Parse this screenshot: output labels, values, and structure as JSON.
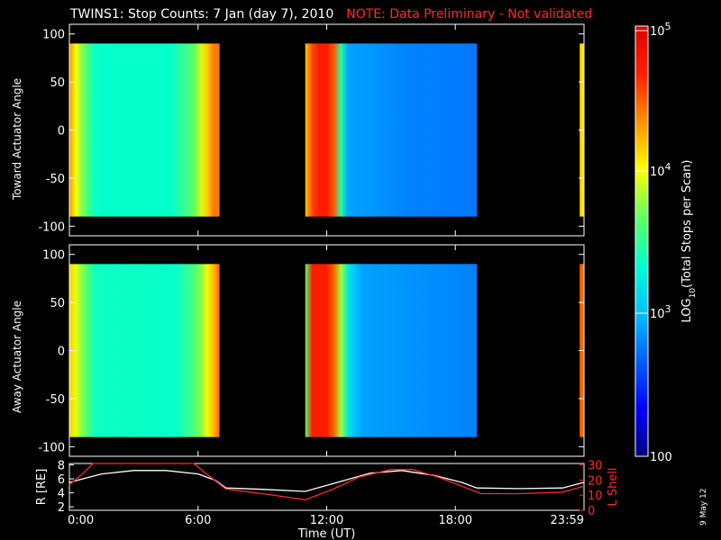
{
  "title": {
    "main": "TWINS1: Stop Counts:  7 Jan (day    7), 2010",
    "note": "NOTE: Data Preliminary - Not validated",
    "note_color": "#ff2a2a"
  },
  "datestamp": "9 May 12",
  "chart_data": [
    {
      "type": "heatmap",
      "id": "toward",
      "ylabel": "Toward Actuator Angle",
      "ylim": [
        -110,
        110
      ],
      "yticks": [
        "100",
        "50",
        "0",
        "-50",
        "-100"
      ],
      "ytick_values": [
        100,
        50,
        0,
        -50,
        -100
      ],
      "x_domain_hours": [
        0,
        24
      ],
      "data_segments_hours": [
        [
          0.0,
          7.0
        ],
        [
          11.0,
          19.0
        ],
        [
          23.8,
          24.0
        ]
      ],
      "angle_range": [
        -90,
        90
      ],
      "background": "#000000",
      "series": [
        {
          "name": "seg1",
          "profile": [
            [
              0.0,
              0.78
            ],
            [
              0.4,
              0.62
            ],
            [
              1.2,
              0.45
            ],
            [
              4.8,
              0.45
            ],
            [
              5.8,
              0.55
            ],
            [
              6.3,
              0.68
            ],
            [
              6.9,
              0.85
            ],
            [
              7.0,
              0.8
            ]
          ]
        },
        {
          "name": "seg2",
          "profile": [
            [
              11.0,
              0.72
            ],
            [
              11.4,
              0.88
            ],
            [
              11.9,
              0.92
            ],
            [
              12.4,
              0.82
            ],
            [
              12.6,
              0.52
            ],
            [
              13.0,
              0.3
            ],
            [
              16.0,
              0.26
            ],
            [
              19.0,
              0.25
            ]
          ]
        },
        {
          "name": "seg3",
          "profile": [
            [
              23.8,
              0.7
            ],
            [
              24.0,
              0.7
            ]
          ]
        }
      ]
    },
    {
      "type": "heatmap",
      "id": "away",
      "ylabel": "Away Actuator Angle",
      "ylim": [
        -110,
        110
      ],
      "yticks": [
        "100",
        "50",
        "0",
        "-50",
        "-100"
      ],
      "ytick_values": [
        100,
        50,
        0,
        -50,
        -100
      ],
      "x_domain_hours": [
        0,
        24
      ],
      "data_segments_hours": [
        [
          0.0,
          7.0
        ],
        [
          11.0,
          19.0
        ],
        [
          23.8,
          24.0
        ]
      ],
      "angle_range": [
        -90,
        90
      ],
      "background": "#000000",
      "series": [
        {
          "name": "seg1",
          "profile": [
            [
              0.0,
              0.72
            ],
            [
              0.5,
              0.6
            ],
            [
              1.2,
              0.46
            ],
            [
              5.0,
              0.45
            ],
            [
              6.0,
              0.55
            ],
            [
              6.6,
              0.7
            ],
            [
              7.0,
              0.82
            ]
          ]
        },
        {
          "name": "seg2",
          "profile": [
            [
              11.0,
              0.55
            ],
            [
              11.2,
              0.9
            ],
            [
              12.0,
              0.9
            ],
            [
              12.5,
              0.78
            ],
            [
              12.8,
              0.45
            ],
            [
              13.5,
              0.3
            ],
            [
              19.0,
              0.26
            ]
          ]
        },
        {
          "name": "seg3",
          "profile": [
            [
              23.8,
              0.82
            ],
            [
              24.0,
              0.82
            ]
          ]
        }
      ]
    },
    {
      "type": "line",
      "id": "orbit",
      "xlabel": "Time (UT)",
      "xlim": [
        0,
        24
      ],
      "xticks": [
        "0:00",
        "6:00",
        "12:00",
        "18:00",
        "23:59"
      ],
      "xtick_values": [
        0,
        6,
        12,
        18,
        24
      ],
      "left_axis": {
        "label": "R [RE]",
        "ylim": [
          1.5,
          8.2
        ],
        "ticks": [
          "8",
          "6",
          "4",
          "2"
        ],
        "tick_values": [
          8,
          6,
          4,
          2
        ]
      },
      "right_axis": {
        "label": "L Shell",
        "ylim": [
          0,
          31
        ],
        "ticks": [
          "30",
          "20",
          "10",
          "0"
        ],
        "tick_values": [
          30,
          20,
          10,
          0
        ],
        "color": "#ff2a2a"
      },
      "series": [
        {
          "name": "R",
          "axis": "left",
          "color": "#ffffff",
          "x": [
            0,
            1.5,
            3,
            4.5,
            6,
            6.8,
            7.3,
            9,
            11,
            12.5,
            14,
            15.5,
            17,
            18.3,
            19,
            21,
            23,
            24
          ],
          "y": [
            5.5,
            6.7,
            7.2,
            7.2,
            6.7,
            5.8,
            4.7,
            4.5,
            4.2,
            5.5,
            6.8,
            7.2,
            6.5,
            5.5,
            4.7,
            4.6,
            4.7,
            5.5
          ]
        },
        {
          "name": "L Shell",
          "axis": "right",
          "color": "#ff2a2a",
          "x": [
            0,
            0.6,
            1.1,
            5.8,
            6.4,
            7.3,
            9,
            11,
            12.3,
            13.5,
            15,
            16,
            17.2,
            18.3,
            19.2,
            21,
            23,
            24
          ],
          "y": [
            17,
            24,
            31,
            31,
            24,
            14,
            11,
            7,
            14,
            22,
            27,
            27,
            22,
            16,
            11,
            11,
            12,
            16
          ]
        }
      ]
    }
  ],
  "colorbar": {
    "label": "LOG",
    "label_sub": "10",
    "label_rest": "(Total Stops per Scan)",
    "tick_top": "10",
    "tick_top_exp": "5",
    "tick_mid_upper": "10",
    "tick_mid_upper_exp": "4",
    "tick_mid_lower": "10",
    "tick_mid_lower_exp": "3",
    "tick_bottom": "100",
    "stops": [
      "#000080",
      "#0000ff",
      "#0060ff",
      "#00c0ff",
      "#00ffd0",
      "#60ff60",
      "#ffff00",
      "#ff9000",
      "#ff2000",
      "#e00000"
    ]
  }
}
